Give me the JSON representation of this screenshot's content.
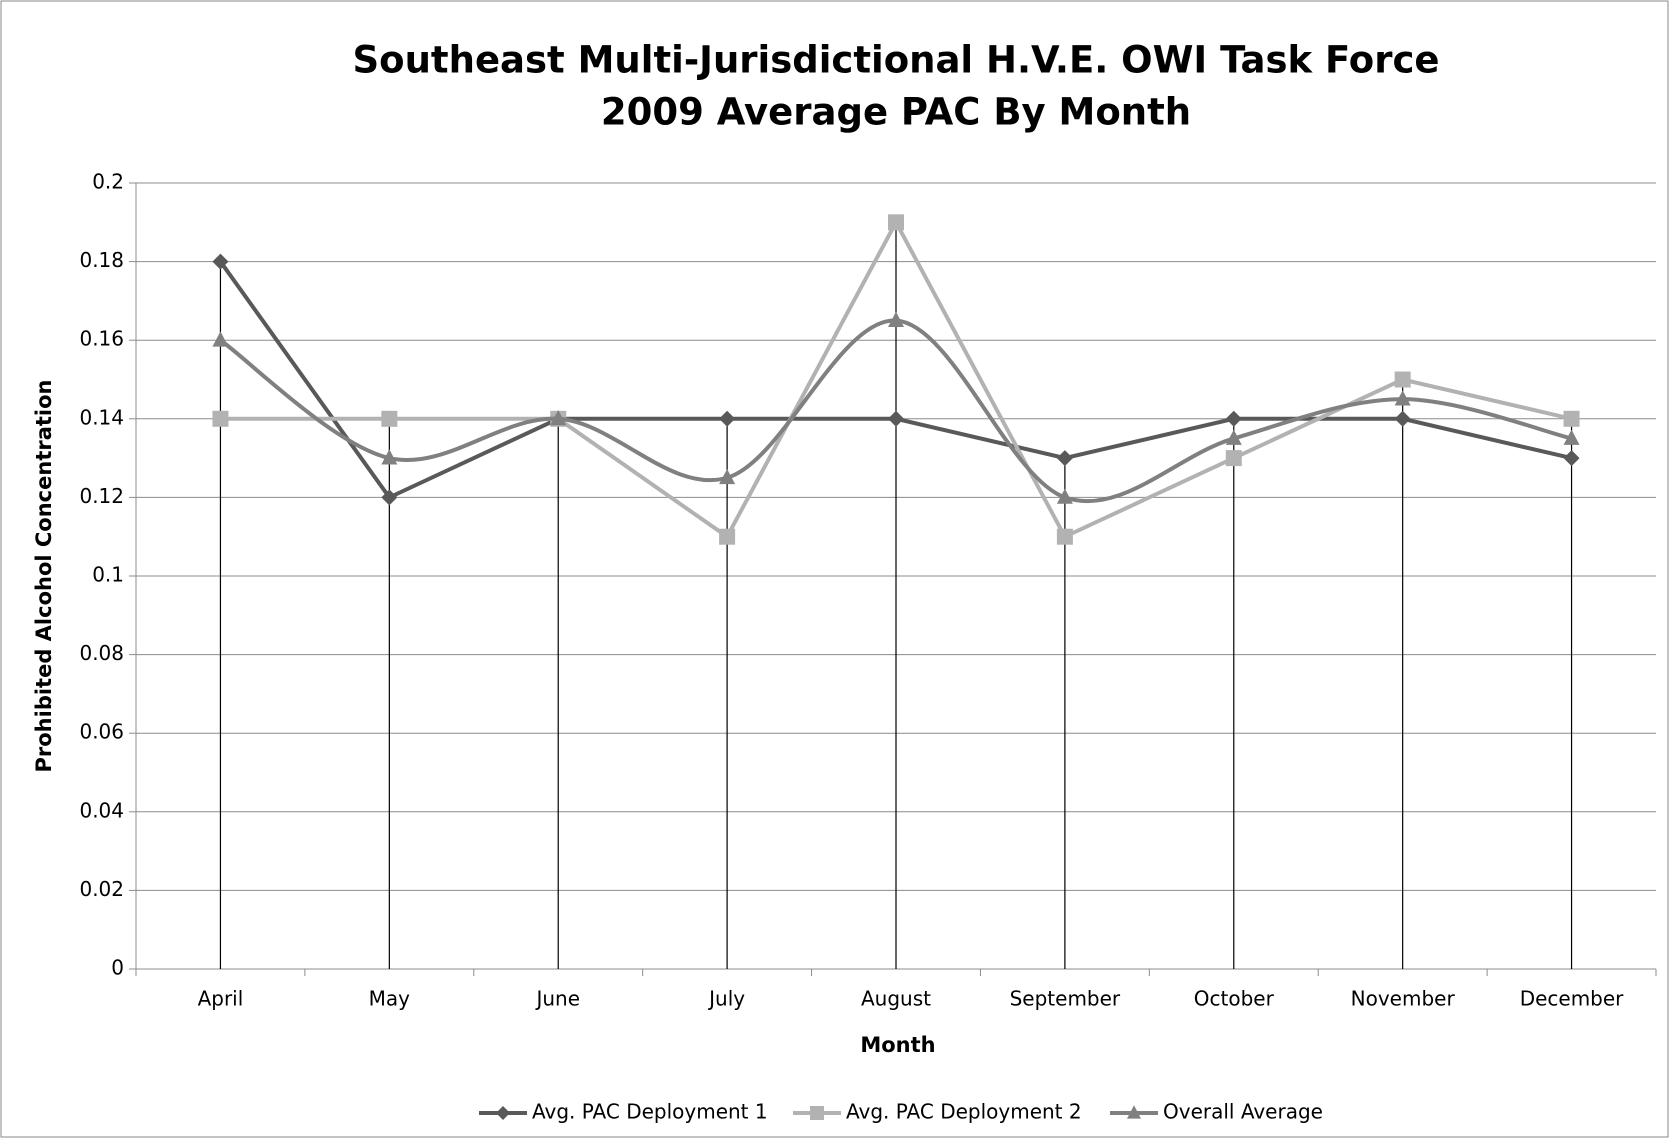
{
  "chart_data": {
    "type": "line",
    "title": "Southeast Multi-Jurisdictional H.V.E. OWI Task Force",
    "subtitle": "2009 Average PAC By Month",
    "x_label": "Month",
    "y_label": "Prohibited Alcohol Concentration",
    "categories": [
      "April",
      "May",
      "June",
      "July",
      "August",
      "September",
      "October",
      "November",
      "December"
    ],
    "series": [
      {
        "name": "Avg. PAC Deployment 1",
        "color": "#595959",
        "marker": "diamond",
        "smooth": false,
        "values": [
          0.18,
          0.12,
          0.14,
          0.14,
          0.14,
          0.13,
          0.14,
          0.14,
          0.13
        ]
      },
      {
        "name": "Avg. PAC Deployment 2",
        "color": "#b2b2b2",
        "marker": "square",
        "smooth": false,
        "values": [
          0.14,
          0.14,
          0.14,
          0.11,
          0.19,
          0.11,
          0.13,
          0.15,
          0.14
        ]
      },
      {
        "name": "Overall Average",
        "color": "#808080",
        "marker": "triangle",
        "smooth": true,
        "values": [
          0.16,
          0.13,
          0.14,
          0.125,
          0.165,
          0.12,
          0.135,
          0.145,
          0.135
        ]
      }
    ],
    "ylim": [
      0,
      0.2
    ],
    "yticks": [
      0,
      0.02,
      0.04,
      0.06,
      0.08,
      0.1,
      0.12,
      0.14,
      0.16,
      0.18,
      0.2
    ],
    "grid": true,
    "drop_lines": true,
    "legend": "bottom"
  }
}
